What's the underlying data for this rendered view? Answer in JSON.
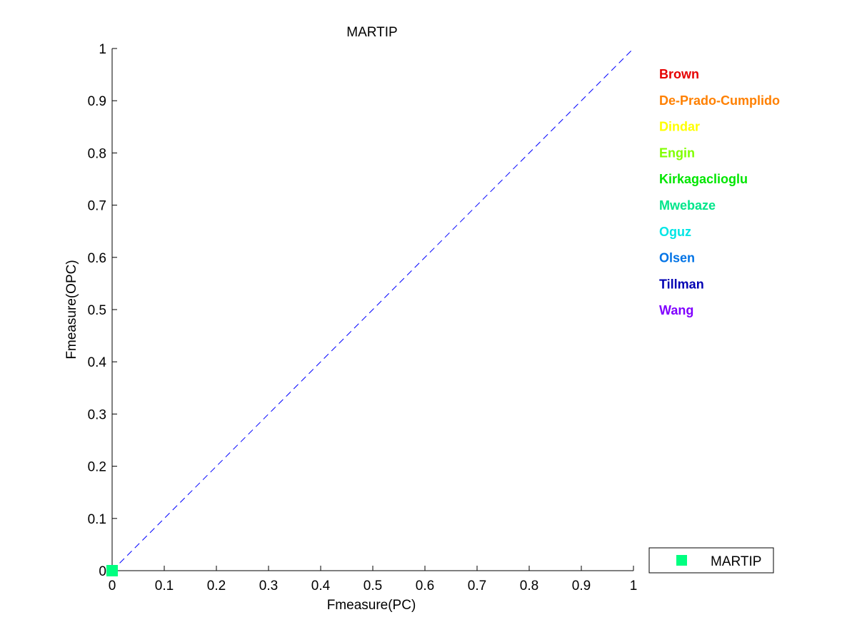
{
  "chart_data": {
    "type": "scatter",
    "title": "MARTIP",
    "xlabel": "Fmeasure(PC)",
    "ylabel": "Fmeasure(OPC)",
    "xlim": [
      0,
      1
    ],
    "ylim": [
      0,
      1
    ],
    "xticks": [
      "0",
      "0.1",
      "0.2",
      "0.3",
      "0.4",
      "0.5",
      "0.6",
      "0.7",
      "0.8",
      "0.9",
      "1"
    ],
    "yticks": [
      "0",
      "0.1",
      "0.2",
      "0.3",
      "0.4",
      "0.5",
      "0.6",
      "0.7",
      "0.8",
      "0.9",
      "1"
    ],
    "grid": false,
    "reference_line": {
      "from": [
        0,
        0
      ],
      "to": [
        1,
        1
      ],
      "style": "dashed",
      "color": "#0000ff"
    },
    "series": [
      {
        "name": "MARTIP",
        "color": "#00ff80",
        "marker": "square",
        "points": [
          {
            "x": 0,
            "y": 0
          }
        ]
      }
    ],
    "name_labels": [
      {
        "text": "Brown",
        "color": "#e60000"
      },
      {
        "text": "De-Prado-Cumplido",
        "color": "#ff8000"
      },
      {
        "text": "Dindar",
        "color": "#ffff00"
      },
      {
        "text": "Engin",
        "color": "#80ff00"
      },
      {
        "text": "Kirkagaclioglu",
        "color": "#00e600"
      },
      {
        "text": "Mwebaze",
        "color": "#00e68a"
      },
      {
        "text": "Oguz",
        "color": "#00e6e6"
      },
      {
        "text": "Olsen",
        "color": "#0073e6"
      },
      {
        "text": "Tillman",
        "color": "#0000b3"
      },
      {
        "text": "Wang",
        "color": "#8000ff"
      }
    ],
    "legend": {
      "position": "bottom-right",
      "entries": [
        {
          "label": "MARTIP",
          "color": "#00ff80",
          "marker": "square"
        }
      ]
    }
  }
}
